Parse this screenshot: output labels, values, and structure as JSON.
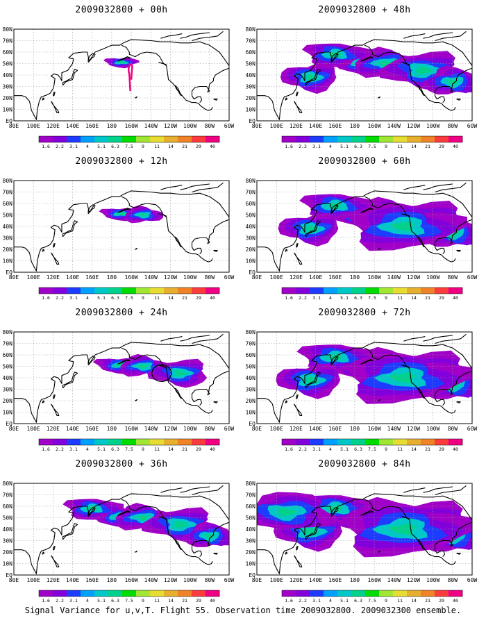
{
  "caption": "Signal Variance for u,v,T. Flight 55. Observation time 2009032800. 2009032300 ensemble.",
  "map": {
    "lat_ticks": [
      "80N",
      "70N",
      "60N",
      "50N",
      "40N",
      "30N",
      "20N",
      "10N",
      "EQ"
    ],
    "lon_ticks": [
      "80E",
      "100E",
      "120E",
      "140E",
      "160E",
      "180",
      "160W",
      "140W",
      "120W",
      "100W",
      "80W",
      "60W"
    ],
    "lon_range_deg_east": [
      80,
      300
    ],
    "lat_range": [
      0,
      80
    ]
  },
  "colorbar": {
    "levels": [
      "1.6",
      "2.2",
      "3.1",
      "4",
      "5.1",
      "6.3",
      "7.5",
      "9",
      "11",
      "14",
      "21",
      "29",
      "40"
    ],
    "colors": [
      "#a000c8",
      "#8200dc",
      "#1e3cff",
      "#00a0ff",
      "#00c8c8",
      "#00d28c",
      "#00dc00",
      "#a0e632",
      "#e6dc32",
      "#e6af2d",
      "#f08228",
      "#fa3c3c",
      "#f00082"
    ]
  },
  "panels": [
    {
      "title": "2009032800 + 00h",
      "spread": 0.0,
      "has_track": true,
      "has_circle": false
    },
    {
      "title": "2009032800 + 12h",
      "spread": 0.15,
      "has_track": false,
      "has_circle": false
    },
    {
      "title": "2009032800 + 24h",
      "spread": 0.35,
      "has_track": false,
      "has_circle": true
    },
    {
      "title": "2009032800 + 36h",
      "spread": 0.55,
      "has_track": false,
      "has_circle": false
    },
    {
      "title": "2009032800 + 48h",
      "spread": 0.7,
      "has_track": false,
      "has_circle": false
    },
    {
      "title": "2009032800 + 60h",
      "spread": 0.8,
      "has_track": false,
      "has_circle": false
    },
    {
      "title": "2009032800 + 72h",
      "spread": 0.9,
      "has_track": false,
      "has_circle": false
    },
    {
      "title": "2009032800 + 84h",
      "spread": 1.0,
      "has_track": false,
      "has_circle": false
    }
  ]
}
